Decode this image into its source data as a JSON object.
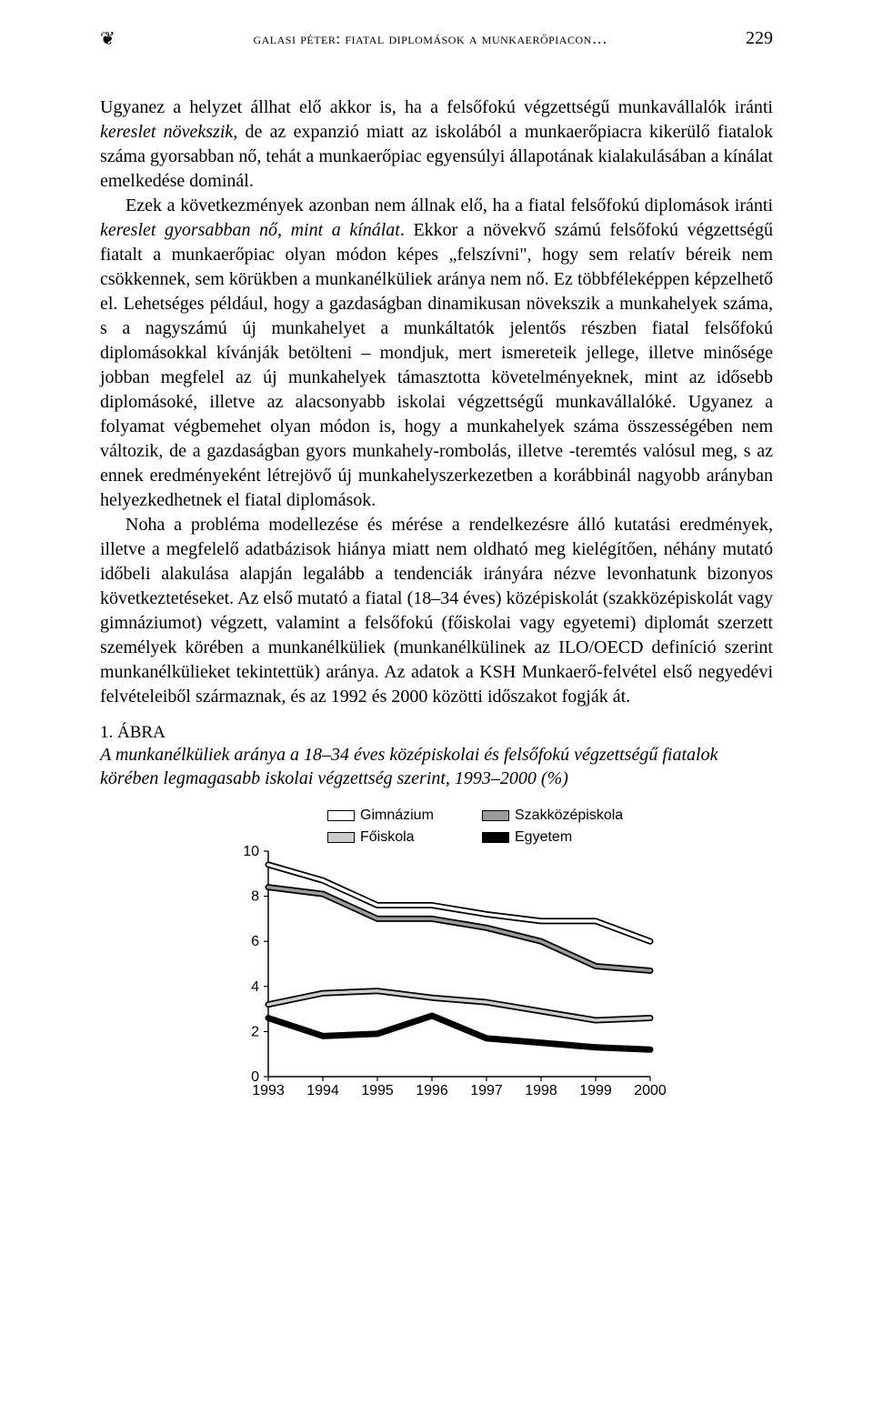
{
  "header": {
    "running_title": "galasi péter: fiatal diplomások a munkaerőpiacon…",
    "page_number": "229"
  },
  "paragraphs": {
    "p1a": "Ugyanez a helyzet állhat elő akkor is, ha a felsőfokú végzettségű munkavállalók iránti ",
    "p1b": "kereslet növekszik",
    "p1c": ", de az expanzió miatt az iskolából a munkaerőpiacra kikerülő fiatalok száma gyorsabban nő, tehát a munkaerőpiac egyensúlyi állapotának kialakulásában a kínálat emelkedése dominál.",
    "p2a": "Ezek a következmények azonban nem állnak elő, ha a fiatal felsőfokú diplomások iránti ",
    "p2b": "kereslet gyorsabban nő, mint a kínálat",
    "p2c": ". Ekkor a növekvő számú felsőfokú végzettségű fiatalt a munkaerőpiac olyan módon képes „felszívni\", hogy sem relatív béreik nem csökkennek, sem körükben a munkanélküliek aránya nem nő. Ez többféleképpen képzelhető el. Lehetséges például, hogy a gazdaságban dinamikusan növekszik a munkahelyek száma, s a nagyszámú új munkahelyet a munkáltatók jelentős részben fiatal felsőfokú diplomásokkal kívánják betölteni – mondjuk, mert ismereteik jellege, illetve minősége jobban megfelel az új munkahelyek támasztotta követelményeknek, mint az idősebb diplomásoké, illetve az alacsonyabb iskolai végzettségű munkavállalóké. Ugyanez a folyamat végbemehet olyan módon is, hogy a munkahelyek száma összességében nem változik, de a gazdaságban gyors munkahely-rombolás, illetve -teremtés valósul meg, s az ennek eredményeként létrejövő új munkahelyszerkezetben a korábbinál nagyobb arányban helyezkedhetnek el fiatal diplomások.",
    "p3": "Noha a probléma modellezése és mérése a rendelkezésre álló kutatási eredmények, illetve a megfelelő adatbázisok hiánya miatt nem oldható meg kielégítően, néhány mutató időbeli alakulása alapján legalább a tendenciák irányára nézve levonhatunk bizonyos következtetéseket. Az első mutató a fiatal (18–34 éves) középiskolát (szakközépiskolát vagy gimnáziumot) végzett, valamint a felsőfokú (főiskolai vagy egyetemi) diplomát szerzett személyek körében a munkanélküliek (munkanélkülinek az ILO/OECD definíció szerint munkanélkülieket tekintettük) aránya. Az adatok a KSH Munkaerő-felvétel első negyedévi felvételeiből származnak, és az 1992 és 2000 közötti időszakot fogják át."
  },
  "figure": {
    "number": "1. ÁBRA",
    "title": "A munkanélküliek aránya a 18–34 éves középiskolai és felsőfokú végzettségű fiatalok körében legmagasabb iskolai végzettség szerint, 1993–2000 (%)"
  },
  "chart": {
    "type": "line",
    "years": [
      "1993",
      "1994",
      "1995",
      "1996",
      "1997",
      "1998",
      "1999",
      "2000"
    ],
    "ylim": [
      0,
      10
    ],
    "ytick_step": 2,
    "series": [
      {
        "name": "Gimnázium",
        "color": "#ffffff",
        "stroke": "#000000",
        "values": [
          9.4,
          8.7,
          7.6,
          7.6,
          7.2,
          6.9,
          6.9,
          6.0
        ]
      },
      {
        "name": "Szakközépiskola",
        "color": "#9a9a9a",
        "stroke": "#000000",
        "values": [
          8.4,
          8.1,
          7.0,
          7.0,
          6.6,
          6.0,
          4.9,
          4.7
        ]
      },
      {
        "name": "Főiskola",
        "color": "#cccccc",
        "stroke": "#000000",
        "values": [
          3.2,
          3.7,
          3.8,
          3.5,
          3.3,
          2.9,
          2.5,
          2.6
        ]
      },
      {
        "name": "Egyetem",
        "color": "#000000",
        "stroke": "#000000",
        "values": [
          2.6,
          1.8,
          1.9,
          2.7,
          1.7,
          1.5,
          1.3,
          1.2
        ]
      }
    ],
    "axis_color": "#000000",
    "tick_fontsize": 16,
    "tick_font": "Arial, Helvetica, sans-serif",
    "line_width": 3.5
  }
}
